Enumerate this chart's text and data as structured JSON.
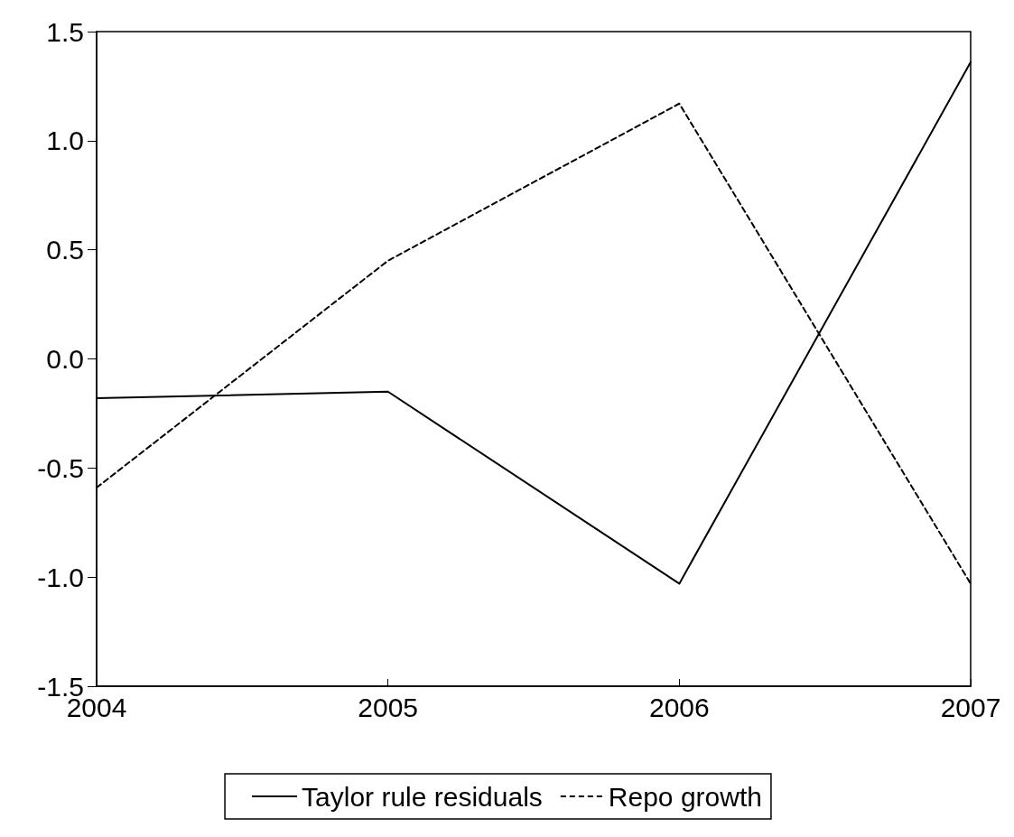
{
  "chart_data": {
    "type": "line",
    "x": [
      2004,
      2005,
      2006,
      2007
    ],
    "xlim": [
      2004,
      2007
    ],
    "xticks": [
      2004,
      2005,
      2006,
      2007
    ],
    "ylim": [
      -1.5,
      1.5
    ],
    "yticks": [
      {
        "value": -1.5,
        "label": "-1.5"
      },
      {
        "value": -1,
        "label": "-1.0"
      },
      {
        "value": -0.5,
        "label": "-0.5"
      },
      {
        "value": 0,
        "label": "0.0"
      },
      {
        "value": 0.5,
        "label": "0.5"
      },
      {
        "value": 1,
        "label": "1.0"
      },
      {
        "value": 1.5,
        "label": "1.5"
      }
    ],
    "grid": false,
    "legend": "bottom",
    "marker": "none",
    "series": [
      {
        "name": "Taylor rule residuals",
        "color": "#000000",
        "line_style": "solid",
        "values": [
          -0.18,
          -0.15,
          -1.03,
          1.36
        ]
      },
      {
        "name": "Repo growth",
        "color": "#000000",
        "line_style": "dashed",
        "values": [
          -0.59,
          0.45,
          1.17,
          -1.03
        ]
      }
    ]
  }
}
